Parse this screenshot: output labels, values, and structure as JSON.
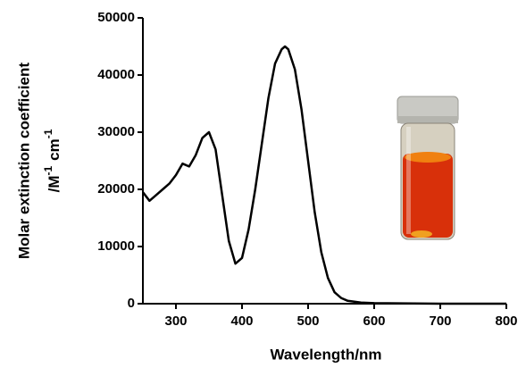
{
  "chart_data": {
    "type": "line",
    "xlabel": "Wavelength/nm",
    "ylabel": "Molar extinction coefficient",
    "ylabel_unit": [
      "/M",
      "-1",
      "cm",
      "-1"
    ],
    "x": [
      250,
      260,
      270,
      280,
      290,
      300,
      310,
      320,
      330,
      340,
      350,
      360,
      370,
      380,
      390,
      400,
      410,
      420,
      430,
      440,
      450,
      460,
      465,
      470,
      480,
      490,
      500,
      510,
      520,
      530,
      540,
      550,
      560,
      580,
      600,
      700,
      800
    ],
    "y": [
      19500,
      18000,
      19000,
      20000,
      21000,
      22500,
      24500,
      24000,
      26000,
      29000,
      30000,
      27000,
      19000,
      11000,
      7000,
      8000,
      13000,
      20000,
      28000,
      36000,
      42000,
      44500,
      45000,
      44500,
      41000,
      34000,
      25000,
      16000,
      9000,
      4500,
      2000,
      1000,
      500,
      200,
      100,
      0,
      0
    ],
    "color": "#000000",
    "xlim": [
      250,
      800
    ],
    "xticks": [
      300,
      400,
      500,
      600,
      700,
      800
    ],
    "ylim": [
      0,
      50000
    ],
    "yticks": [
      0,
      10000,
      20000,
      30000,
      40000,
      50000
    ]
  }
}
